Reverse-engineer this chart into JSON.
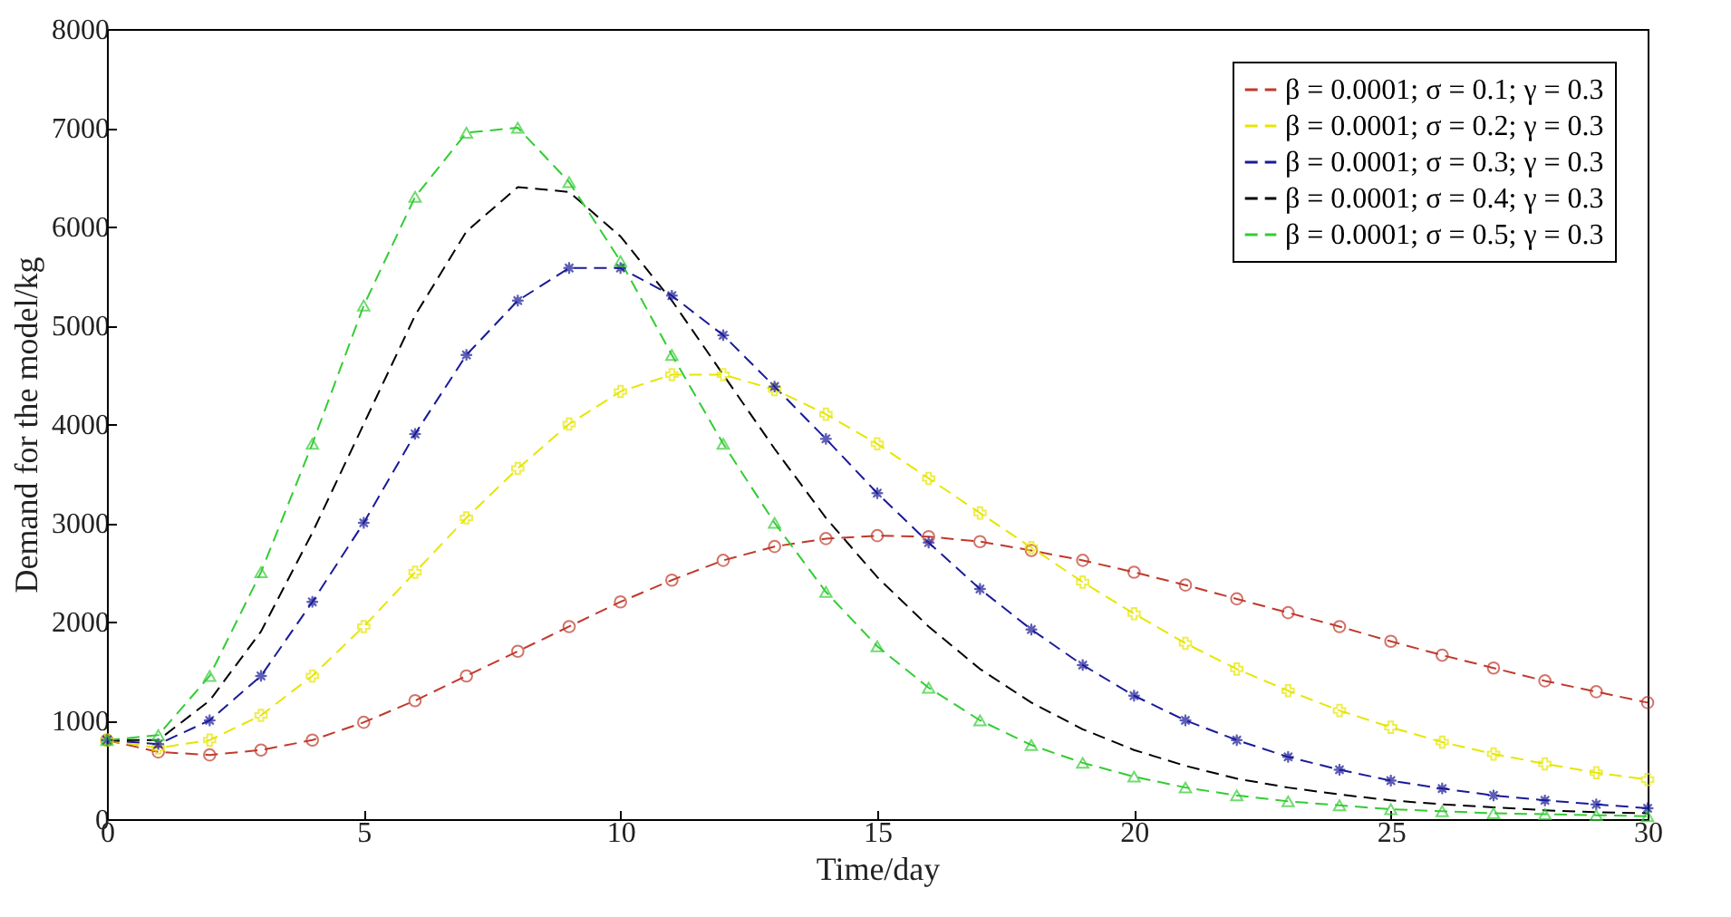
{
  "chart_data": {
    "type": "line",
    "xlabel": "Time/day",
    "ylabel": "Demand for the model/kg",
    "x": [
      0,
      1,
      2,
      3,
      4,
      5,
      6,
      7,
      8,
      9,
      10,
      11,
      12,
      13,
      14,
      15,
      16,
      17,
      18,
      19,
      20,
      21,
      22,
      23,
      24,
      25,
      26,
      27,
      28,
      29,
      30
    ],
    "xlim": [
      0,
      30
    ],
    "xticks": [
      0,
      5,
      10,
      15,
      20,
      25,
      30
    ],
    "ylim": [
      0,
      8000
    ],
    "yticks": [
      0,
      1000,
      2000,
      3000,
      4000,
      5000,
      6000,
      7000,
      8000
    ],
    "grid": false,
    "legend": "top right",
    "line_style": "dashed",
    "series": [
      {
        "name": "β = 0.0001; σ = 0.1; γ = 0.3",
        "color": "#c0392b",
        "marker": "circle",
        "values": [
          800,
          680,
          650,
          700,
          800,
          980,
          1200,
          1450,
          1700,
          1950,
          2200,
          2420,
          2620,
          2760,
          2840,
          2870,
          2860,
          2810,
          2720,
          2620,
          2500,
          2370,
          2230,
          2090,
          1950,
          1800,
          1660,
          1530,
          1400,
          1290,
          1180
        ]
      },
      {
        "name": "β = 0.0001; σ = 0.2; γ = 0.3",
        "color": "#e6e600",
        "marker": "cross",
        "values": [
          800,
          720,
          800,
          1050,
          1450,
          1950,
          2500,
          3050,
          3550,
          4000,
          4330,
          4500,
          4500,
          4350,
          4100,
          3800,
          3450,
          3100,
          2750,
          2400,
          2080,
          1780,
          1520,
          1300,
          1100,
          930,
          780,
          660,
          560,
          470,
          400
        ]
      },
      {
        "name": "β = 0.0001; σ = 0.3; γ = 0.3",
        "color": "#1a1a99",
        "marker": "star",
        "values": [
          800,
          760,
          1000,
          1450,
          2200,
          3000,
          3900,
          4700,
          5250,
          5580,
          5580,
          5300,
          4900,
          4380,
          3850,
          3300,
          2800,
          2330,
          1920,
          1560,
          1250,
          1000,
          800,
          630,
          500,
          390,
          310,
          240,
          190,
          150,
          110
        ]
      },
      {
        "name": "β = 0.0001; σ = 0.4; γ = 0.3",
        "color": "#000000",
        "marker": "none",
        "values": [
          800,
          800,
          1200,
          1900,
          2900,
          4000,
          5100,
          5950,
          6400,
          6350,
          5900,
          5250,
          4500,
          3750,
          3050,
          2450,
          1950,
          1520,
          1180,
          910,
          700,
          540,
          410,
          320,
          250,
          190,
          150,
          120,
          90,
          70,
          60
        ]
      },
      {
        "name": "β = 0.0001; σ = 0.5; γ = 0.3",
        "color": "#33cc33",
        "marker": "triangle",
        "values": [
          800,
          850,
          1450,
          2500,
          3800,
          5200,
          6300,
          6950,
          7000,
          6450,
          5650,
          4700,
          3800,
          3000,
          2300,
          1750,
          1330,
          1000,
          750,
          570,
          430,
          320,
          240,
          180,
          140,
          100,
          80,
          60,
          50,
          40,
          30
        ]
      }
    ]
  }
}
